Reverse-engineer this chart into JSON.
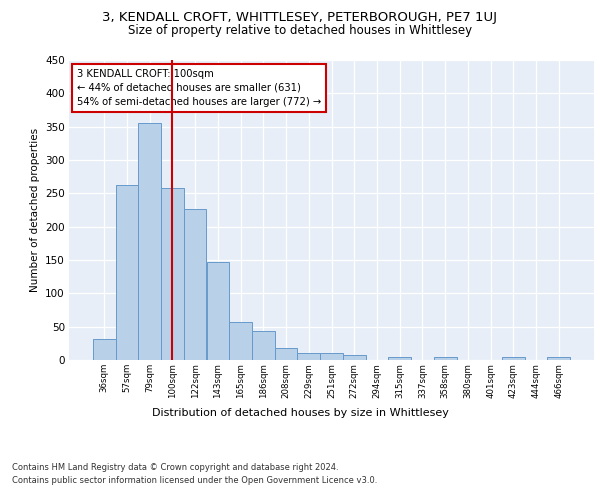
{
  "title": "3, KENDALL CROFT, WHITTLESEY, PETERBOROUGH, PE7 1UJ",
  "subtitle": "Size of property relative to detached houses in Whittlesey",
  "xlabel": "Distribution of detached houses by size in Whittlesey",
  "ylabel": "Number of detached properties",
  "categories": [
    "36sqm",
    "57sqm",
    "79sqm",
    "100sqm",
    "122sqm",
    "143sqm",
    "165sqm",
    "186sqm",
    "208sqm",
    "229sqm",
    "251sqm",
    "272sqm",
    "294sqm",
    "315sqm",
    "337sqm",
    "358sqm",
    "380sqm",
    "401sqm",
    "423sqm",
    "444sqm",
    "466sqm"
  ],
  "bar_values": [
    31,
    262,
    356,
    258,
    226,
    147,
    57,
    44,
    18,
    11,
    11,
    7,
    0,
    5,
    0,
    5,
    0,
    0,
    5,
    0,
    5
  ],
  "bar_color": "#b8d0e8",
  "bar_edge_color": "#6699cc",
  "vline_idx": 3,
  "vline_color": "#cc0000",
  "annotation_title": "3 KENDALL CROFT: 100sqm",
  "annotation_line1": "← 44% of detached houses are smaller (631)",
  "annotation_line2": "54% of semi-detached houses are larger (772) →",
  "annotation_box_edge": "#cc0000",
  "ylim": [
    0,
    450
  ],
  "yticks": [
    0,
    50,
    100,
    150,
    200,
    250,
    300,
    350,
    400,
    450
  ],
  "bg_color": "#e8eef8",
  "grid_color": "#ffffff",
  "footer1": "Contains HM Land Registry data © Crown copyright and database right 2024.",
  "footer2": "Contains public sector information licensed under the Open Government Licence v3.0."
}
